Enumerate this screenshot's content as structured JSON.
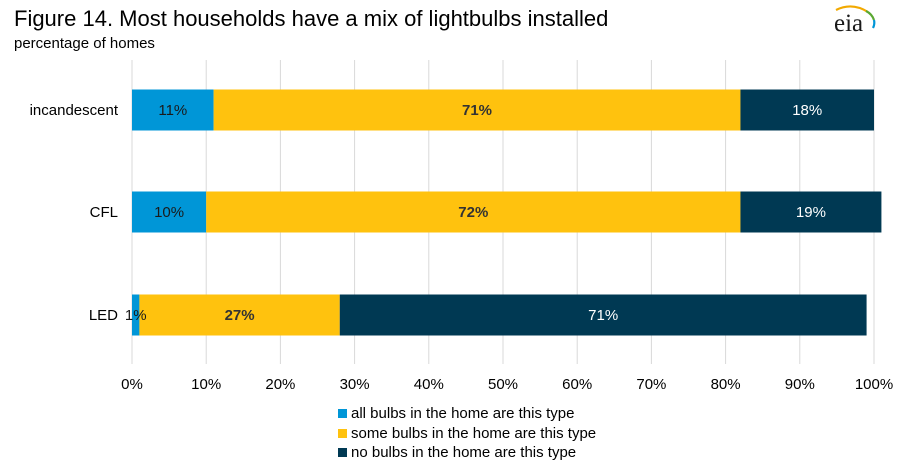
{
  "title": "Figure 14. Most households have a mix of lightbulbs installed",
  "subtitle": "percentage of homes",
  "logo": {
    "text": "eia",
    "icon": "eia-logo"
  },
  "chart_data": {
    "type": "bar",
    "orientation": "horizontal",
    "stacked": true,
    "categories": [
      "incandescent",
      "CFL",
      "LED"
    ],
    "series": [
      {
        "name": "all bulbs in the home are this type",
        "color": "#0096d7",
        "label_color": "#1a1a1a",
        "label_bold": false,
        "values": [
          11,
          10,
          1
        ],
        "labels": [
          "11%",
          "10%",
          "1%"
        ]
      },
      {
        "name": "some bulbs in the home are this type",
        "color": "#ffc20e",
        "label_color": "#333333",
        "label_bold": true,
        "values": [
          71,
          72,
          27
        ],
        "labels": [
          "71%",
          "72%",
          "27%"
        ]
      },
      {
        "name": "no bulbs in the home are this type",
        "color": "#003953",
        "label_color": "#ffffff",
        "label_bold": false,
        "values": [
          18,
          19,
          71
        ],
        "labels": [
          "18%",
          "19%",
          "71%"
        ]
      }
    ],
    "xlim": [
      0,
      100
    ],
    "xticks": [
      0,
      10,
      20,
      30,
      40,
      50,
      60,
      70,
      80,
      90,
      100
    ],
    "xtick_labels": [
      "0%",
      "10%",
      "20%",
      "30%",
      "40%",
      "50%",
      "60%",
      "70%",
      "80%",
      "90%",
      "100%"
    ],
    "grid": true,
    "legend_position": "bottom",
    "xlabel": "",
    "ylabel": ""
  }
}
